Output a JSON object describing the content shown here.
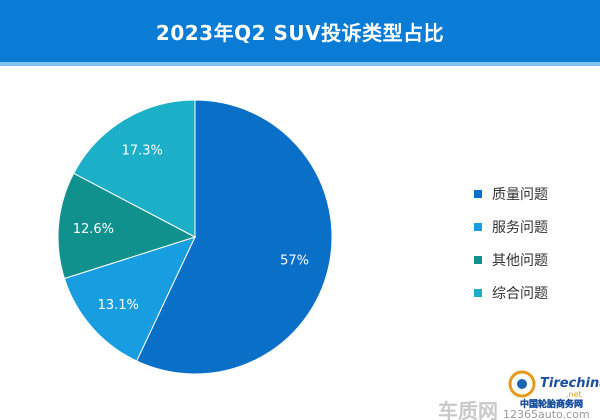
{
  "header": {
    "title": "2023年Q2 SUV投诉类型占比"
  },
  "chart_data": {
    "type": "pie",
    "title": "2023年Q2 SUV投诉类型占比",
    "categories": [
      "质量问题",
      "服务问题",
      "其他问题",
      "综合问题"
    ],
    "values": [
      57,
      13.1,
      12.6,
      17.3
    ],
    "labels": [
      "57%",
      "13.1%",
      "12.6%",
      "17.3%"
    ],
    "colors": [
      "#0a6fc7",
      "#179de0",
      "#11918e",
      "#1bafc8"
    ],
    "legend": "right"
  },
  "watermark": {
    "car_logo_text": "车质网",
    "site_text": "12365auto.com",
    "tire_logo_text": "Tirechina",
    "tire_logo_sub": ".net",
    "tire_site_text": "中国轮胎商务网"
  }
}
